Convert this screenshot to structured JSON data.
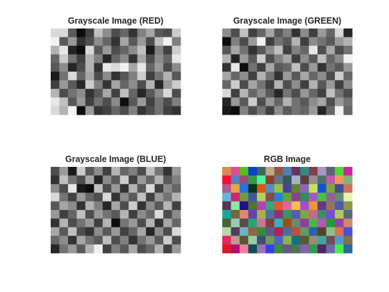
{
  "figure": {
    "background": "#ffffff"
  },
  "chart_data": [
    {
      "type": "heatmap",
      "title": "Grayscale Image (RED)",
      "colormap": "gray",
      "rows": 10,
      "cols": 15,
      "values": [
        [
          0.85,
          0.85,
          0.35,
          0.05,
          0.25,
          0.75,
          0.55,
          0.3,
          0.4,
          0.2,
          0.5,
          0.65,
          0.35,
          0.3,
          0.8
        ],
        [
          0.95,
          0.35,
          0.6,
          0.2,
          0.3,
          0.55,
          0.4,
          0.2,
          0.65,
          0.35,
          0.6,
          0.3,
          0.75,
          0.95,
          0.5
        ],
        [
          0.7,
          0.9,
          0.15,
          0.05,
          0.85,
          0.35,
          0.6,
          0.3,
          0.4,
          0.55,
          0.75,
          0.1,
          0.5,
          0.25,
          0.8
        ],
        [
          0.4,
          0.8,
          0.45,
          0.25,
          0.7,
          0.5,
          0.15,
          0.4,
          0.55,
          0.2,
          0.65,
          0.3,
          0.55,
          0.4,
          0.9
        ],
        [
          0.35,
          0.55,
          0.15,
          0.3,
          0.7,
          0.2,
          0.9,
          0.85,
          0.95,
          0.65,
          0.9,
          0.4,
          0.6,
          0.3,
          0.55
        ],
        [
          0.1,
          0.45,
          0.85,
          0.4,
          0.65,
          0.3,
          0.55,
          0.2,
          0.35,
          0.5,
          0.8,
          0.25,
          0.45,
          0.7,
          0.35
        ],
        [
          0.25,
          0.6,
          0.35,
          0.15,
          0.8,
          0.5,
          0.2,
          0.65,
          0.4,
          0.55,
          0.3,
          0.7,
          0.15,
          0.6,
          0.8
        ],
        [
          0.7,
          0.3,
          0.45,
          0.55,
          0.2,
          0.35,
          0.65,
          0.25,
          0.75,
          0.4,
          0.15,
          0.35,
          0.55,
          0.85,
          0.3
        ],
        [
          0.9,
          0.75,
          0.35,
          0.6,
          0.25,
          0.45,
          0.3,
          0.55,
          0.05,
          0.35,
          0.6,
          0.25,
          0.45,
          0.3,
          0.5
        ],
        [
          0.85,
          0.7,
          0.95,
          0.05,
          0.6,
          0.2,
          0.25,
          0.4,
          0.3,
          0.5,
          0.2,
          0.3,
          0.45,
          0.25,
          0.2
        ]
      ]
    },
    {
      "type": "heatmap",
      "title": "Grayscale Image (GREEN)",
      "colormap": "gray",
      "rows": 10,
      "cols": 15,
      "values": [
        [
          0.55,
          0.3,
          0.75,
          0.25,
          0.4,
          0.65,
          0.35,
          0.5,
          0.2,
          0.55,
          0.25,
          0.6,
          0.4,
          0.85,
          0.15
        ],
        [
          0.05,
          0.5,
          0.3,
          0.6,
          0.95,
          0.25,
          0.45,
          0.35,
          0.7,
          0.25,
          0.55,
          0.45,
          0.35,
          0.6,
          0.7
        ],
        [
          0.35,
          0.65,
          0.45,
          0.2,
          0.35,
          0.55,
          0.75,
          0.25,
          0.5,
          0.4,
          0.9,
          0.3,
          0.65,
          0.3,
          0.45
        ],
        [
          0.7,
          0.15,
          0.6,
          0.35,
          0.8,
          0.3,
          0.5,
          0.65,
          0.25,
          0.55,
          0.35,
          0.75,
          0.4,
          0.55,
          0.95
        ],
        [
          0.2,
          0.9,
          0.05,
          0.45,
          0.25,
          0.65,
          0.35,
          0.4,
          0.75,
          0.3,
          0.6,
          0.2,
          0.45,
          0.35,
          0.6
        ],
        [
          0.65,
          0.4,
          0.55,
          0.25,
          0.7,
          0.45,
          0.2,
          0.6,
          0.35,
          0.65,
          0.4,
          0.55,
          0.3,
          0.8,
          0.4
        ],
        [
          0.4,
          0.8,
          0.3,
          0.65,
          0.45,
          0.25,
          0.7,
          0.3,
          0.55,
          0.25,
          0.7,
          0.35,
          0.6,
          0.25,
          0.55
        ],
        [
          0.85,
          0.25,
          0.7,
          0.4,
          0.55,
          0.35,
          0.15,
          0.45,
          0.3,
          0.6,
          0.4,
          0.25,
          0.75,
          0.45,
          0.3
        ],
        [
          0.15,
          0.6,
          0.35,
          0.8,
          0.3,
          0.6,
          0.4,
          0.7,
          0.45,
          0.35,
          0.55,
          0.65,
          0.3,
          0.6,
          0.45
        ],
        [
          0.1,
          0.05,
          0.5,
          0.3,
          0.45,
          0.25,
          0.55,
          0.35,
          0.45,
          0.4,
          0.6,
          0.15,
          0.4,
          0.95,
          0.4
        ]
      ]
    },
    {
      "type": "heatmap",
      "title": "Grayscale Image (BLUE)",
      "colormap": "gray",
      "rows": 10,
      "cols": 15,
      "values": [
        [
          0.3,
          0.6,
          0.1,
          0.8,
          0.35,
          0.55,
          0.25,
          0.7,
          0.4,
          0.5,
          0.3,
          0.75,
          0.45,
          0.2,
          0.6
        ],
        [
          0.2,
          0.75,
          0.45,
          0.3,
          0.65,
          0.15,
          0.55,
          0.35,
          0.8,
          0.25,
          0.6,
          0.4,
          0.7,
          0.35,
          0.5
        ],
        [
          0.55,
          0.3,
          0.9,
          0.1,
          0.05,
          0.75,
          0.3,
          0.6,
          0.2,
          0.7,
          0.35,
          0.85,
          0.25,
          0.55,
          0.4
        ],
        [
          0.85,
          0.45,
          0.25,
          0.6,
          0.4,
          0.3,
          0.85,
          0.2,
          0.55,
          0.35,
          0.75,
          0.25,
          0.6,
          0.45,
          0.7
        ],
        [
          0.35,
          0.65,
          0.55,
          0.2,
          0.7,
          0.5,
          0.15,
          0.65,
          0.3,
          0.8,
          0.2,
          0.55,
          0.35,
          0.7,
          0.25
        ],
        [
          0.6,
          0.25,
          0.4,
          0.75,
          0.3,
          0.6,
          0.45,
          0.35,
          0.7,
          0.25,
          0.55,
          0.4,
          0.85,
          0.3,
          0.55
        ],
        [
          0.2,
          0.7,
          0.3,
          0.45,
          0.6,
          0.25,
          0.7,
          0.05,
          0.45,
          0.6,
          0.3,
          0.7,
          0.2,
          0.65,
          0.4
        ],
        [
          0.65,
          0.35,
          0.75,
          0.3,
          0.2,
          0.55,
          0.35,
          0.6,
          0.25,
          0.4,
          0.65,
          0.15,
          0.55,
          0.3,
          0.85
        ],
        [
          0.4,
          0.55,
          0.2,
          0.65,
          0.45,
          0.35,
          0.75,
          0.3,
          0.5,
          0.2,
          0.45,
          0.6,
          0.35,
          0.8,
          0.3
        ],
        [
          0.15,
          0.45,
          0.6,
          0.35,
          0.7,
          0.95,
          0.25,
          0.5,
          0.35,
          0.65,
          0.3,
          0.4,
          0.7,
          0.25,
          0.6
        ]
      ]
    },
    {
      "type": "heatmap",
      "title": "RGB Image",
      "colormap": "rgb",
      "rows": 10,
      "cols": 15
    }
  ]
}
